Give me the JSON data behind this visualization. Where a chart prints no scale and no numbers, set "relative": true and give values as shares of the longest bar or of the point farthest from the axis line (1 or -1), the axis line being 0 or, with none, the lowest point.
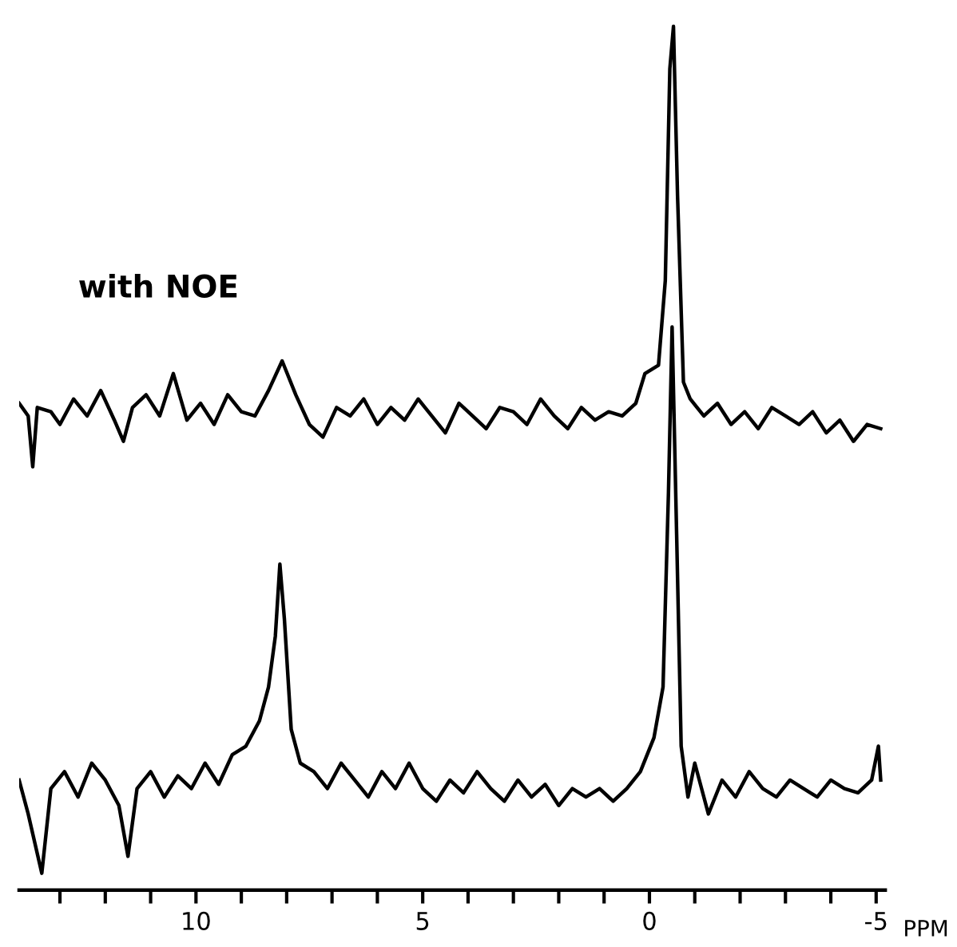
{
  "chart_data": {
    "type": "line",
    "relative": true,
    "xlabel": "PPM",
    "xlim": [
      13.9,
      -5.2
    ],
    "xticks": [
      {
        "value": 13,
        "label": null
      },
      {
        "value": 12,
        "label": null
      },
      {
        "value": 11,
        "label": null
      },
      10,
      {
        "value": 9,
        "label": null
      },
      {
        "value": 8,
        "label": null
      },
      {
        "value": 7,
        "label": null
      },
      {
        "value": 6,
        "label": null
      },
      5,
      {
        "value": 4,
        "label": null
      },
      {
        "value": 3,
        "label": null
      },
      {
        "value": 2,
        "label": null
      },
      {
        "value": 1,
        "label": null
      },
      0,
      {
        "value": -1,
        "label": null
      },
      {
        "value": -2,
        "label": null
      },
      {
        "value": -3,
        "label": null
      },
      {
        "value": -4,
        "label": null
      },
      {
        "value": -5,
        "label": "-5"
      }
    ],
    "tick_labels": "x",
    "grid": false,
    "series": [
      {
        "name": "with NOE",
        "color": "#000000",
        "x": [
          13.9,
          13.7,
          13.6,
          13.5,
          13.2,
          13.0,
          12.7,
          12.4,
          12.1,
          11.8,
          11.6,
          11.4,
          11.1,
          10.8,
          10.5,
          10.2,
          9.9,
          9.6,
          9.3,
          9.0,
          8.7,
          8.4,
          8.1,
          7.8,
          7.5,
          7.2,
          6.9,
          6.6,
          6.3,
          6.0,
          5.7,
          5.4,
          5.1,
          4.8,
          4.5,
          4.2,
          3.9,
          3.6,
          3.3,
          3.0,
          2.7,
          2.4,
          2.1,
          1.8,
          1.5,
          1.2,
          0.9,
          0.6,
          0.3,
          0.1,
          -0.2,
          -0.35,
          -0.45,
          -0.53,
          -0.62,
          -0.75,
          -0.9,
          -1.2,
          -1.5,
          -1.8,
          -2.1,
          -2.4,
          -2.7,
          -3.0,
          -3.3,
          -3.6,
          -3.9,
          -4.2,
          -4.5,
          -4.8,
          -5.1
        ],
        "values": [
          0.555,
          0.54,
          0.48,
          0.55,
          0.545,
          0.53,
          0.56,
          0.54,
          0.57,
          0.535,
          0.51,
          0.55,
          0.565,
          0.54,
          0.59,
          0.535,
          0.555,
          0.53,
          0.565,
          0.545,
          0.54,
          0.57,
          0.605,
          0.565,
          0.53,
          0.515,
          0.55,
          0.54,
          0.56,
          0.53,
          0.55,
          0.535,
          0.56,
          0.54,
          0.52,
          0.555,
          0.54,
          0.525,
          0.55,
          0.545,
          0.53,
          0.56,
          0.54,
          0.525,
          0.55,
          0.535,
          0.545,
          0.54,
          0.555,
          0.59,
          0.6,
          0.7,
          0.95,
          1.0,
          0.8,
          0.58,
          0.56,
          0.54,
          0.555,
          0.53,
          0.545,
          0.525,
          0.55,
          0.54,
          0.53,
          0.545,
          0.52,
          0.535,
          0.51,
          0.53,
          0.525
        ]
      },
      {
        "color": "#000000",
        "x": [
          13.9,
          13.7,
          13.4,
          13.2,
          12.9,
          12.6,
          12.3,
          12.0,
          11.7,
          11.5,
          11.3,
          11.0,
          10.7,
          10.4,
          10.1,
          9.8,
          9.5,
          9.2,
          8.9,
          8.6,
          8.4,
          8.25,
          8.15,
          8.05,
          7.9,
          7.7,
          7.4,
          7.1,
          6.8,
          6.5,
          6.2,
          5.9,
          5.6,
          5.3,
          5.0,
          4.7,
          4.4,
          4.1,
          3.8,
          3.5,
          3.2,
          2.9,
          2.6,
          2.3,
          2.0,
          1.7,
          1.4,
          1.1,
          0.8,
          0.5,
          0.2,
          -0.1,
          -0.3,
          -0.42,
          -0.5,
          -0.6,
          -0.7,
          -0.85,
          -1.0,
          -1.3,
          -1.6,
          -1.9,
          -2.2,
          -2.5,
          -2.8,
          -3.1,
          -3.4,
          -3.7,
          -4.0,
          -4.3,
          -4.6,
          -4.9,
          -5.05,
          -5.1
        ],
        "values": [
          0.11,
          0.07,
          0.0,
          0.1,
          0.12,
          0.09,
          0.13,
          0.11,
          0.08,
          0.02,
          0.1,
          0.12,
          0.09,
          0.115,
          0.1,
          0.13,
          0.105,
          0.14,
          0.15,
          0.18,
          0.22,
          0.28,
          0.365,
          0.3,
          0.17,
          0.13,
          0.12,
          0.1,
          0.13,
          0.11,
          0.09,
          0.12,
          0.1,
          0.13,
          0.1,
          0.085,
          0.11,
          0.095,
          0.12,
          0.1,
          0.085,
          0.11,
          0.09,
          0.105,
          0.08,
          0.1,
          0.09,
          0.1,
          0.085,
          0.1,
          0.12,
          0.16,
          0.22,
          0.45,
          0.645,
          0.4,
          0.15,
          0.09,
          0.13,
          0.07,
          0.11,
          0.09,
          0.12,
          0.1,
          0.09,
          0.11,
          0.1,
          0.09,
          0.11,
          0.1,
          0.095,
          0.11,
          0.15,
          0.11
        ]
      }
    ]
  }
}
